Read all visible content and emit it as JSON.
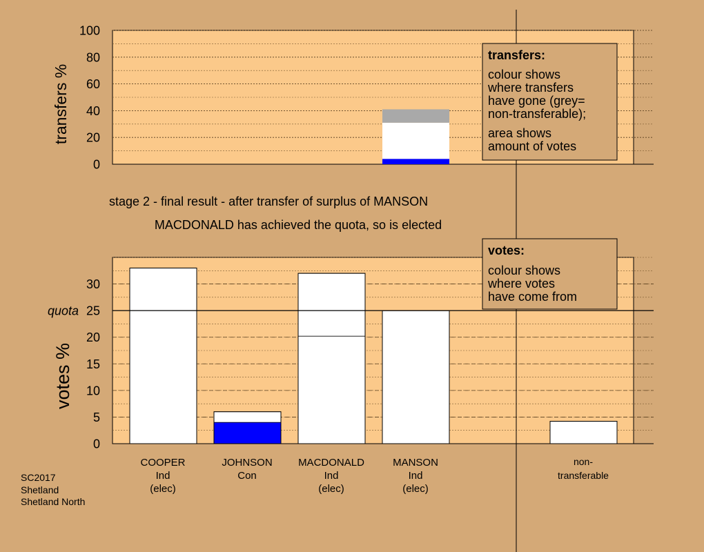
{
  "chart_data": [
    {
      "type": "bar",
      "name": "transfers",
      "ylabel": "transfers %",
      "ylim": [
        0,
        100
      ],
      "yticks": [
        0,
        20,
        40,
        60,
        80,
        100
      ],
      "grid": true,
      "bars": [
        {
          "category": "MANSON",
          "segments": [
            {
              "from": 0,
              "to": 4,
              "color": "#0000ff"
            },
            {
              "from": 4,
              "to": 31,
              "color": "#ffffff"
            },
            {
              "from": 31,
              "to": 41,
              "color": "#a9a9a9"
            }
          ]
        }
      ],
      "legend": {
        "placement": "top-right",
        "title": "transfers:",
        "lines": [
          "colour shows",
          "where transfers",
          "have gone (grey=",
          "non-transferable);"
        ],
        "lines2": [
          "area shows",
          "amount of votes"
        ]
      }
    },
    {
      "type": "bar",
      "name": "votes",
      "ylabel": "votes %",
      "ylim": [
        0,
        35
      ],
      "yticks": [
        0,
        5,
        10,
        15,
        20,
        25,
        30
      ],
      "quota": {
        "label": "quota",
        "value": 25
      },
      "grid": true,
      "bars": [
        {
          "category": "COOPER",
          "segments": [
            {
              "from": 0,
              "to": 33,
              "color": "#ffffff"
            }
          ]
        },
        {
          "category": "JOHNSON",
          "segments": [
            {
              "from": 0,
              "to": 4,
              "color": "#0000ff"
            },
            {
              "from": 4,
              "to": 6,
              "color": "#ffffff"
            }
          ]
        },
        {
          "category": "MACDONALD",
          "segments": [
            {
              "from": 0,
              "to": 20.2,
              "color": "#ffffff"
            },
            {
              "from": 20.2,
              "to": 32,
              "color": "#ffffff"
            }
          ]
        },
        {
          "category": "MANSON",
          "segments": [
            {
              "from": 0,
              "to": 25,
              "color": "#ffffff"
            }
          ]
        },
        {
          "category": "non-transferable",
          "segments": [
            {
              "from": 0,
              "to": 4.2,
              "color": "#ffffff"
            }
          ]
        }
      ],
      "legend": {
        "placement": "top-right",
        "title": "votes:",
        "lines": [
          "colour shows",
          "where votes",
          "have come from"
        ]
      }
    }
  ],
  "stage_title": "stage 2 - final result - after transfer of surplus of MANSON",
  "stage_subtitle": "MACDONALD has achieved the quota, so is elected",
  "candidates": [
    {
      "name": "COOPER",
      "party": "Ind",
      "status": "(elec)"
    },
    {
      "name": "JOHNSON",
      "party": "Con",
      "status": ""
    },
    {
      "name": "MACDONALD",
      "party": "Ind",
      "status": "(elec)"
    },
    {
      "name": "MANSON",
      "party": "Ind",
      "status": "(elec)"
    }
  ],
  "nontransferable_label": [
    "non-",
    "transferable"
  ],
  "footer": [
    "SC2017",
    "Shetland",
    "Shetland North"
  ],
  "colors": {
    "background": "#d4a977",
    "plot": "#fbc98a",
    "con": "#0000ff",
    "ind": "#ffffff",
    "nontransferable": "#a9a9a9"
  }
}
